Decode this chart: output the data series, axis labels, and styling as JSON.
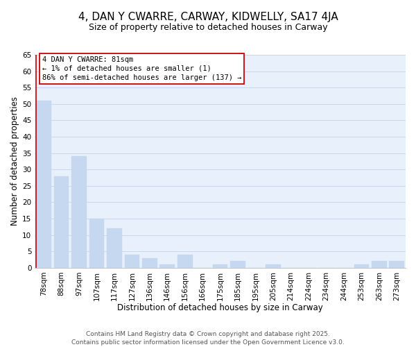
{
  "title": "4, DAN Y CWARRE, CARWAY, KIDWELLY, SA17 4JA",
  "subtitle": "Size of property relative to detached houses in Carway",
  "xlabel": "Distribution of detached houses by size in Carway",
  "ylabel": "Number of detached properties",
  "categories": [
    "78sqm",
    "88sqm",
    "97sqm",
    "107sqm",
    "117sqm",
    "127sqm",
    "136sqm",
    "146sqm",
    "156sqm",
    "166sqm",
    "175sqm",
    "185sqm",
    "195sqm",
    "205sqm",
    "214sqm",
    "224sqm",
    "234sqm",
    "244sqm",
    "253sqm",
    "263sqm",
    "273sqm"
  ],
  "values": [
    51,
    28,
    34,
    15,
    12,
    4,
    3,
    1,
    4,
    0,
    1,
    2,
    0,
    1,
    0,
    0,
    0,
    0,
    1,
    2,
    2
  ],
  "bar_color": "#c5d8f0",
  "highlight_color": "#cc0000",
  "ylim": [
    0,
    65
  ],
  "yticks": [
    0,
    5,
    10,
    15,
    20,
    25,
    30,
    35,
    40,
    45,
    50,
    55,
    60,
    65
  ],
  "annotation_title": "4 DAN Y CWARRE: 81sqm",
  "annotation_line1": "← 1% of detached houses are smaller (1)",
  "annotation_line2": "86% of semi-detached houses are larger (137) →",
  "footer_line1": "Contains HM Land Registry data © Crown copyright and database right 2025.",
  "footer_line2": "Contains public sector information licensed under the Open Government Licence v3.0.",
  "background_color": "#ffffff",
  "plot_bg_color": "#e8f0fb",
  "grid_color": "#c8d8ec",
  "title_fontsize": 11,
  "subtitle_fontsize": 9,
  "label_fontsize": 8.5,
  "tick_fontsize": 7.5,
  "footer_fontsize": 6.5,
  "annot_fontsize": 7.5
}
